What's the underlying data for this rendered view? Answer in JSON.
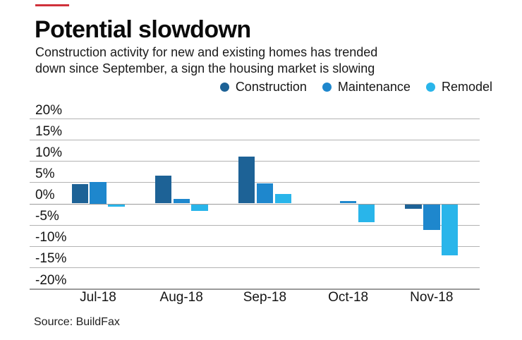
{
  "accent_color": "#d0313b",
  "header": {
    "title": "Potential slowdown",
    "subtitle_line1": "Construction activity for new and existing homes has trended",
    "subtitle_line2": "down since September, a sign the housing market is slowing"
  },
  "source": "Source: BuildFax",
  "chart_data": {
    "type": "bar",
    "title": "Potential slowdown",
    "categories": [
      "Jul-18",
      "Aug-18",
      "Sep-18",
      "Oct-18",
      "Nov-18"
    ],
    "series": [
      {
        "name": "Construction",
        "color": "#1d6296",
        "values": [
          4.5,
          6.5,
          11,
          0,
          -1
        ]
      },
      {
        "name": "Maintenance",
        "color": "#1e87cd",
        "values": [
          5,
          1,
          4.8,
          0.5,
          -6
        ]
      },
      {
        "name": "Remodel",
        "color": "#29b5ea",
        "values": [
          -0.5,
          -1.5,
          2.3,
          -4.2,
          -12
        ]
      }
    ],
    "xlabel": "",
    "ylabel": "",
    "ylim": [
      -20,
      20
    ],
    "ytick_step": 5,
    "ytick_suffix": "%",
    "grid": true,
    "legend_position": "top-right"
  }
}
